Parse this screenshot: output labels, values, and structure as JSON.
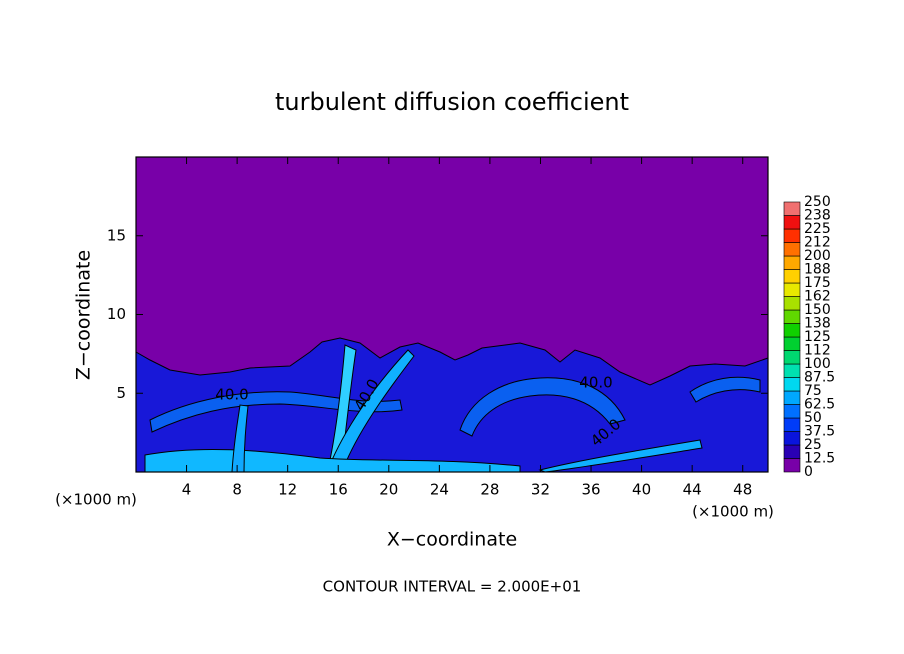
{
  "chart_data": {
    "type": "contour",
    "title": "turbulent diffusion coefficient",
    "x_label": "X−coordinate",
    "y_label": "Z−coordinate",
    "x_unit": "(×1000 m)",
    "xlim": [
      0,
      50
    ],
    "xticks": [
      4,
      8,
      12,
      16,
      20,
      24,
      28,
      32,
      36,
      40,
      44,
      48
    ],
    "ylim": [
      0,
      20
    ],
    "yticks": [
      5,
      10,
      15
    ],
    "colorbar": {
      "ticks": [
        0,
        12.5,
        25,
        37.5,
        50,
        62.5,
        75,
        87.5,
        100,
        112,
        125,
        138,
        150,
        162,
        175,
        188,
        200,
        212,
        225,
        238,
        250
      ],
      "colors": [
        "#7800a8",
        "#2a00b4",
        "#0a14dc",
        "#003cf8",
        "#0070ff",
        "#00a8ff",
        "#00d8f0",
        "#00e0b0",
        "#00d870",
        "#00d030",
        "#10d000",
        "#60d800",
        "#a8e000",
        "#e8e800",
        "#ffd000",
        "#ffa800",
        "#ff7000",
        "#ff3000",
        "#f01010",
        "#f07070"
      ]
    },
    "contour_labels": [
      "40.0",
      "40.0",
      "40.0",
      "40.0"
    ],
    "footer": "CONTOUR INTERVAL = 2.000E+01"
  }
}
